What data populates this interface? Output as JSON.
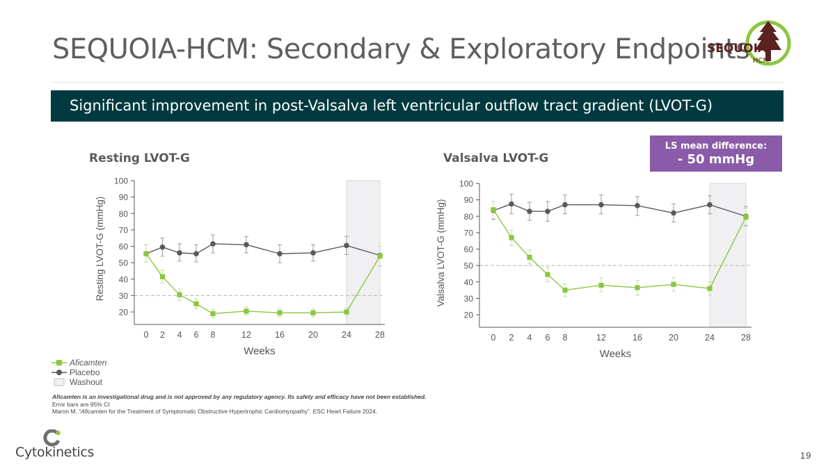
{
  "slide": {
    "title": "SEQUOIA-HCM: Secondary & Exploratory Endpoints",
    "banner": "Significant improvement in post-Valsalva left ventricular outflow tract gradient (LVOT-G)",
    "ls_box": {
      "line1": "LS mean difference:",
      "line2": "- 50 mmHg"
    },
    "logo_sequoia": {
      "word": "SEQUOIA",
      "sub": "HCM"
    },
    "legend": {
      "aficamten": "Aficamten",
      "placebo": "Placebo",
      "washout": "Washout"
    },
    "footnote": {
      "line1": "Aficamten is an investigational drug and is not approved by any regulatory agency. Its safety and efficacy have not been established.",
      "line2": "Error bars are 95% CI",
      "line3_a": "Maron M. “",
      "line3_b": "Aficamten",
      "line3_c": " for the Treatment of Symptomatic Obstructive Hypertrophic Cardiomyopathy”. ESC Heart Failure 2024."
    },
    "company": "Cytokinetics",
    "page_number": "19"
  },
  "colors": {
    "aficamten": "#8dc63f",
    "placebo": "#58595b",
    "washout": "#f0f0f2",
    "banner": "#003a40",
    "ls_box": "#8a5ba8"
  },
  "chart_data": [
    {
      "type": "line",
      "title": "Resting LVOT-G",
      "xlabel": "Weeks",
      "ylabel": "Resting LVOT-G (mmHg)",
      "x": [
        0,
        2,
        4,
        6,
        8,
        12,
        16,
        20,
        24,
        28
      ],
      "xticks": [
        "0",
        "2",
        "4",
        "6",
        "8",
        "12",
        "16",
        "20",
        "24",
        "28"
      ],
      "yticks": [
        "20",
        "30",
        "40",
        "50",
        "60",
        "70",
        "80",
        "90",
        "100"
      ],
      "ylim": [
        13,
        100
      ],
      "reference_line": 30,
      "washout": [
        24,
        28
      ],
      "series": [
        {
          "name": "Placebo",
          "values": [
            55.5,
            59.5,
            56,
            55.5,
            61.5,
            61,
            55.5,
            56,
            60.5,
            54.5
          ],
          "ci_low": [
            50.5,
            54,
            51,
            50.5,
            56,
            56,
            50,
            51,
            55,
            48
          ],
          "ci_high": [
            61,
            65,
            61.5,
            61,
            67,
            66,
            61,
            61,
            66,
            60
          ]
        },
        {
          "name": "Aficamten",
          "values": [
            55.5,
            41.5,
            30.5,
            25,
            19,
            20.5,
            19.5,
            19.5,
            20,
            54
          ],
          "ci_low": [
            50.5,
            37.5,
            27,
            22,
            16.5,
            18,
            17,
            17,
            17.5,
            48
          ],
          "ci_high": [
            61,
            45.5,
            34,
            28,
            21.5,
            23,
            22,
            22,
            22.5,
            60
          ]
        }
      ]
    },
    {
      "type": "line",
      "title": "Valsalva LVOT-G",
      "xlabel": "Weeks",
      "ylabel": "Valsalva LVOT-G (mmHg)",
      "x": [
        0,
        2,
        4,
        6,
        8,
        12,
        16,
        20,
        24,
        28
      ],
      "xticks": [
        "0",
        "2",
        "4",
        "6",
        "8",
        "12",
        "16",
        "20",
        "24",
        "28"
      ],
      "yticks": [
        "20",
        "30",
        "40",
        "50",
        "60",
        "70",
        "80",
        "90",
        "100"
      ],
      "ylim": [
        13,
        100
      ],
      "reference_line": 50,
      "washout": [
        24,
        28
      ],
      "series": [
        {
          "name": "Placebo",
          "values": [
            83.5,
            87.5,
            83,
            83,
            87,
            87,
            86.5,
            82,
            87,
            80
          ],
          "ci_low": [
            78,
            81.5,
            77.5,
            77,
            81.5,
            81.5,
            80.5,
            76.5,
            81.5,
            74.5
          ],
          "ci_high": [
            89,
            93.5,
            88.5,
            89,
            93,
            93,
            92,
            87.5,
            92.5,
            86
          ]
        },
        {
          "name": "Aficamten",
          "values": [
            84,
            67,
            55,
            44.5,
            35,
            38,
            36.5,
            38.5,
            36,
            79.5
          ],
          "ci_low": [
            78.5,
            62,
            51,
            40,
            31,
            34,
            32,
            34.5,
            32,
            74
          ],
          "ci_high": [
            89,
            71.5,
            59.5,
            49,
            39,
            42.5,
            41,
            42.5,
            40,
            85
          ]
        }
      ]
    }
  ]
}
